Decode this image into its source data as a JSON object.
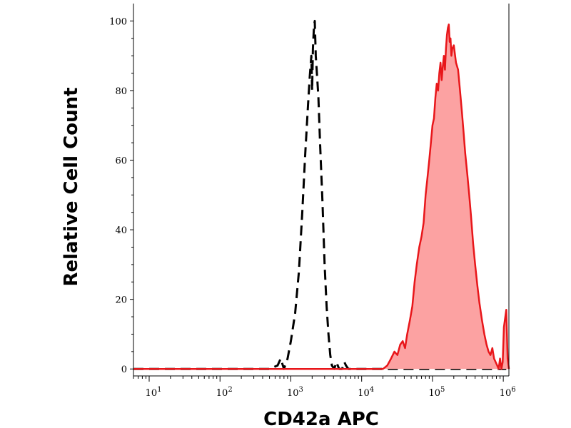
{
  "chart_data": {
    "type": "area",
    "title": "",
    "xlabel": "CD42a APC",
    "ylabel": "Relative Cell Count",
    "x_scale": "log",
    "xlim": [
      6,
      1200000
    ],
    "ylim": [
      -2,
      105
    ],
    "x_ticks": [
      {
        "value": 10,
        "base": "10",
        "exp": "1"
      },
      {
        "value": 100,
        "base": "10",
        "exp": "2"
      },
      {
        "value": 1000,
        "base": "10",
        "exp": "3"
      },
      {
        "value": 10000,
        "base": "10",
        "exp": "4"
      },
      {
        "value": 100000,
        "base": "10",
        "exp": "5"
      },
      {
        "value": 1000000,
        "base": "10",
        "exp": "6"
      }
    ],
    "y_ticks": [
      {
        "value": 0,
        "label": "0"
      },
      {
        "value": 20,
        "label": "20"
      },
      {
        "value": 40,
        "label": "40"
      },
      {
        "value": 60,
        "label": "60"
      },
      {
        "value": 80,
        "label": "80"
      },
      {
        "value": 100,
        "label": "100"
      }
    ],
    "grid": false,
    "legend": "none",
    "series": [
      {
        "style": "dashed",
        "color": "#000000",
        "fill": "none",
        "points": [
          [
            6,
            0
          ],
          [
            100,
            0
          ],
          [
            500,
            0
          ],
          [
            650,
            1
          ],
          [
            720,
            3
          ],
          [
            800,
            0
          ],
          [
            900,
            3
          ],
          [
            1000,
            8
          ],
          [
            1150,
            16
          ],
          [
            1300,
            28
          ],
          [
            1450,
            45
          ],
          [
            1600,
            62
          ],
          [
            1750,
            76
          ],
          [
            1850,
            84
          ],
          [
            1950,
            90
          ],
          [
            2000,
            80
          ],
          [
            2050,
            92
          ],
          [
            2120,
            98
          ],
          [
            2180,
            100
          ],
          [
            2250,
            90
          ],
          [
            2350,
            84
          ],
          [
            2450,
            78
          ],
          [
            2600,
            64
          ],
          [
            2800,
            48
          ],
          [
            3000,
            30
          ],
          [
            3200,
            18
          ],
          [
            3400,
            10
          ],
          [
            3600,
            4
          ],
          [
            3800,
            1
          ],
          [
            4100,
            0
          ],
          [
            4400,
            2
          ],
          [
            4800,
            0
          ],
          [
            5300,
            0
          ],
          [
            5700,
            2
          ],
          [
            6000,
            1
          ],
          [
            6500,
            0
          ],
          [
            30000,
            0
          ],
          [
            300000,
            0
          ],
          [
            1100000,
            0
          ]
        ]
      },
      {
        "style": "solid",
        "color": "#e8161a",
        "fill": "#fca2a2",
        "points": [
          [
            6,
            0
          ],
          [
            20000,
            0
          ],
          [
            23000,
            1
          ],
          [
            26000,
            3
          ],
          [
            29000,
            5
          ],
          [
            32000,
            4
          ],
          [
            35000,
            7
          ],
          [
            38000,
            8
          ],
          [
            41000,
            6
          ],
          [
            44000,
            10
          ],
          [
            48000,
            14
          ],
          [
            52000,
            18
          ],
          [
            56000,
            25
          ],
          [
            60000,
            30
          ],
          [
            65000,
            35
          ],
          [
            70000,
            38
          ],
          [
            75000,
            42
          ],
          [
            80000,
            50
          ],
          [
            85000,
            55
          ],
          [
            90000,
            60
          ],
          [
            95000,
            65
          ],
          [
            100000,
            70
          ],
          [
            105000,
            72
          ],
          [
            110000,
            78
          ],
          [
            115000,
            82
          ],
          [
            120000,
            80
          ],
          [
            125000,
            85
          ],
          [
            130000,
            88
          ],
          [
            135000,
            83
          ],
          [
            140000,
            87
          ],
          [
            145000,
            90
          ],
          [
            150000,
            86
          ],
          [
            155000,
            92
          ],
          [
            160000,
            96
          ],
          [
            165000,
            98
          ],
          [
            170000,
            99
          ],
          [
            175000,
            94
          ],
          [
            180000,
            95
          ],
          [
            185000,
            90
          ],
          [
            190000,
            92
          ],
          [
            200000,
            93
          ],
          [
            215000,
            88
          ],
          [
            230000,
            86
          ],
          [
            245000,
            80
          ],
          [
            260000,
            74
          ],
          [
            275000,
            68
          ],
          [
            290000,
            62
          ],
          [
            310000,
            56
          ],
          [
            330000,
            50
          ],
          [
            350000,
            44
          ],
          [
            375000,
            36
          ],
          [
            400000,
            30
          ],
          [
            430000,
            24
          ],
          [
            460000,
            19
          ],
          [
            500000,
            14
          ],
          [
            540000,
            10
          ],
          [
            580000,
            7
          ],
          [
            620000,
            5
          ],
          [
            660000,
            4
          ],
          [
            700000,
            6
          ],
          [
            740000,
            3
          ],
          [
            780000,
            2
          ],
          [
            820000,
            1
          ],
          [
            860000,
            0
          ],
          [
            900000,
            3
          ],
          [
            940000,
            0
          ],
          [
            980000,
            2
          ],
          [
            1020000,
            12
          ],
          [
            1100000,
            17
          ],
          [
            1150000,
            3
          ],
          [
            1200000,
            0
          ]
        ]
      }
    ]
  }
}
